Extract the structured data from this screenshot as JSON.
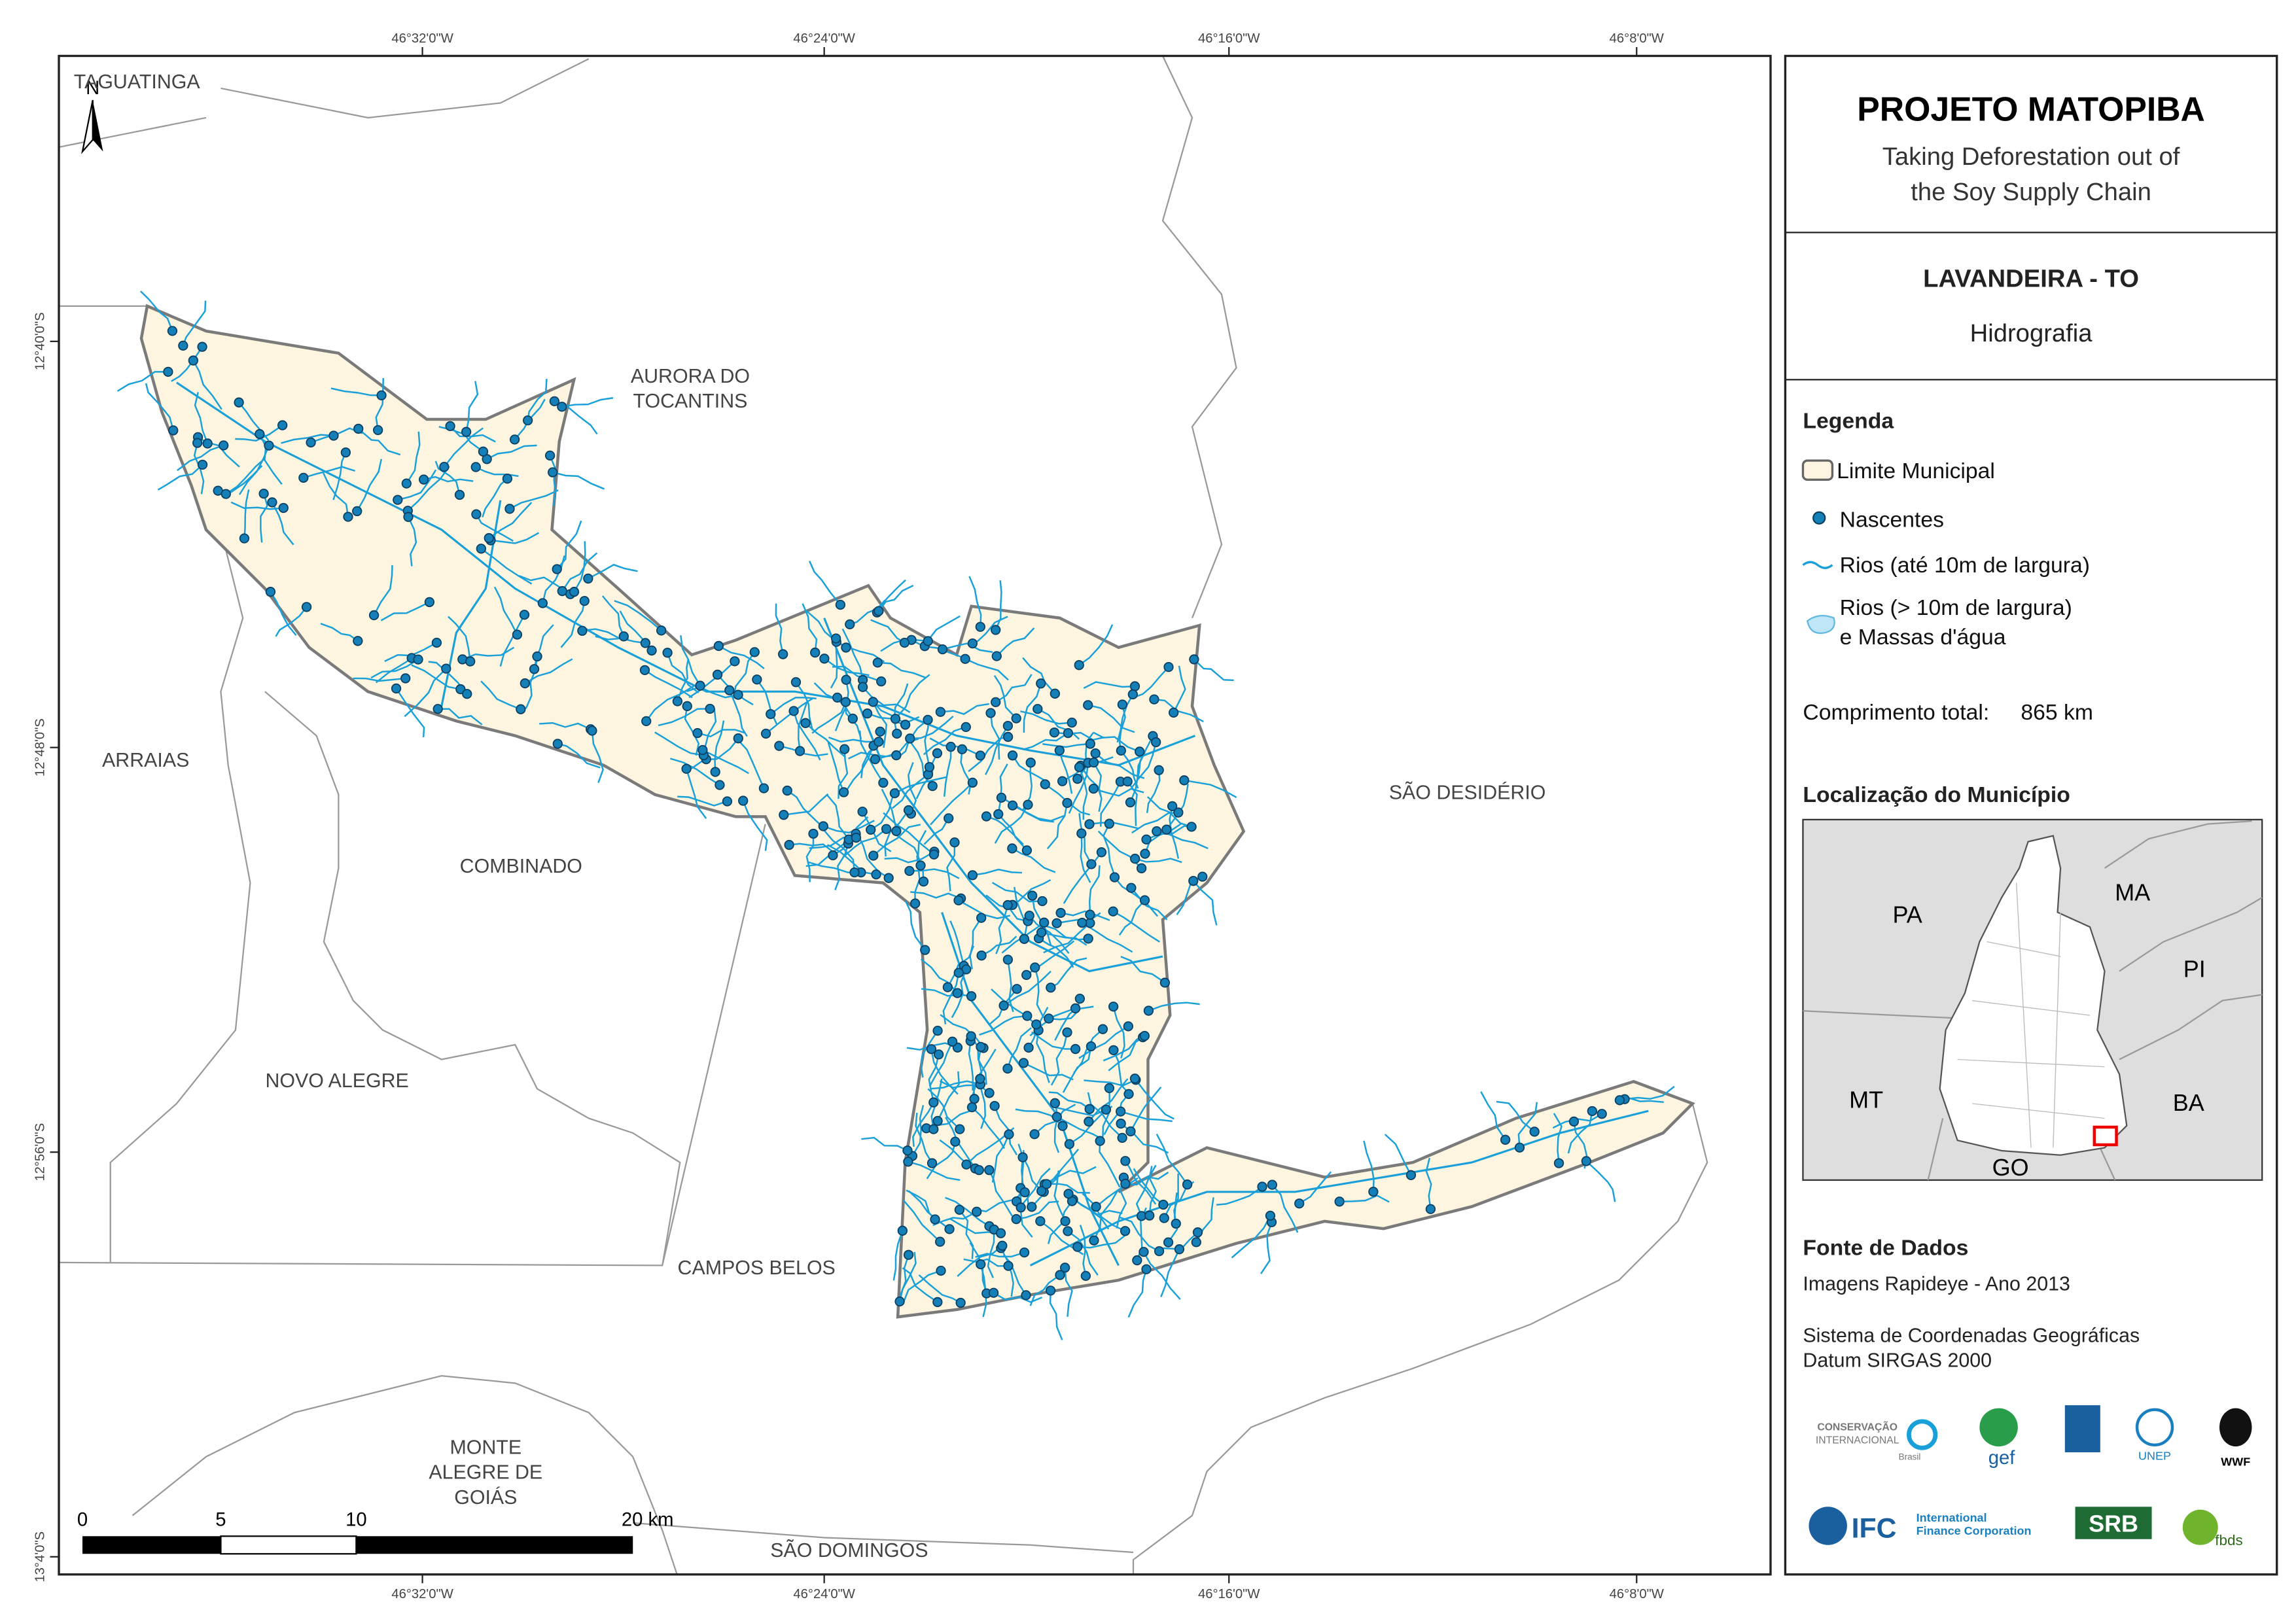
{
  "map": {
    "coordinate_labels": {
      "top": [
        "46°32'0\"W",
        "46°24'0\"W",
        "46°16'0\"W",
        "46°8'0\"W"
      ],
      "bottom": [
        "46°32'0\"W",
        "46°24'0\"W",
        "46°16'0\"W",
        "46°8'0\"W"
      ],
      "left": [
        "12°40'0\"S",
        "12°48'0\"S",
        "12°56'0\"S",
        "13°4'0\"S"
      ]
    },
    "north": "N",
    "place_names": [
      [
        "TAGUATINGA"
      ],
      [
        "AURORA DO",
        "TOCANTINS"
      ],
      [
        "ARRAIAS"
      ],
      [
        "COMBINADO"
      ],
      [
        "SÃO DESIDÉRIO"
      ],
      [
        "NOVO ALEGRE"
      ],
      [
        "CAMPOS BELOS"
      ],
      [
        "MONTE",
        "ALEGRE DE",
        "GOIÁS"
      ],
      [
        "SÃO DOMINGOS"
      ]
    ],
    "scale_bar": [
      "0",
      "5",
      "10",
      "20 km"
    ]
  },
  "panel": {
    "title": "PROJETO MATOPIBA",
    "subtitle": [
      "Taking Deforestation out of",
      "the Soy Supply Chain"
    ],
    "municipality": "LAVANDEIRA - TO",
    "theme": "Hidrografia",
    "legend": {
      "title": "Legenda",
      "items": [
        "Limite Municipal",
        "Nascentes",
        "Rios (até 10m de largura)",
        [
          "Rios (> 10m de largura)",
          "e Massas d'água"
        ]
      ]
    },
    "total_length": {
      "label": "Comprimento total:",
      "value": "865 km"
    },
    "location": {
      "title": "Localização do Município",
      "states": [
        "PA",
        "MA",
        "PI",
        "MT",
        "BA",
        "GO"
      ]
    },
    "sources": {
      "title": "Fonte de Dados",
      "lines": [
        "Imagens Rapideye - Ano 2013",
        "Sistema de Coordenadas Geográficas",
        "Datum SIRGAS 2000"
      ]
    },
    "logos": [
      "CONSERVAÇÃO",
      "INTERNACIONAL",
      "Brasil",
      "gef",
      "UNEP",
      "WWF",
      "IFC",
      "International",
      "Finance Corporation",
      "SRB",
      "fbds"
    ]
  }
}
